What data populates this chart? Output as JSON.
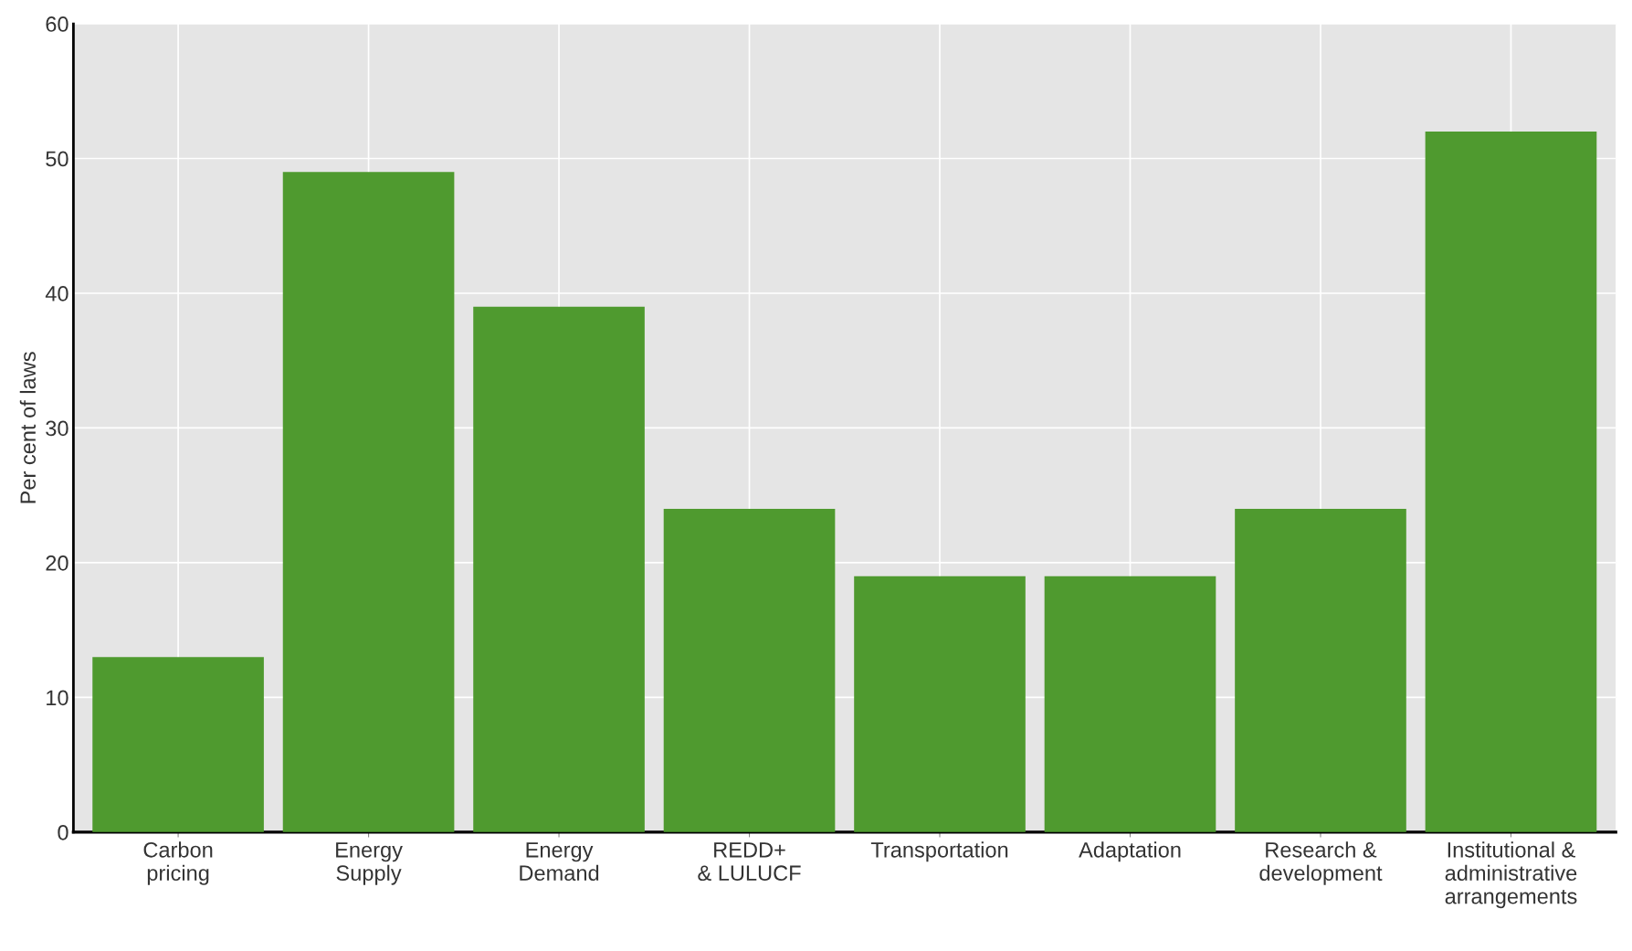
{
  "chart_data": {
    "type": "bar",
    "ylabel": "Per cent of laws",
    "categories": [
      "Carbon\npricing",
      "Energy\nSupply",
      "Energy\nDemand",
      "REDD+\n& LULUCF",
      "Transportation",
      "Adaptation",
      "Research &\ndevelopment",
      "Institutional &\nadministrative\narrangements"
    ],
    "values": [
      13,
      49,
      39,
      24,
      19,
      19,
      24,
      52
    ],
    "color": "#4f9a2f",
    "ylim": [
      0,
      60
    ],
    "yticks": [
      0,
      10,
      20,
      30,
      40,
      50,
      60
    ],
    "grid": true
  }
}
